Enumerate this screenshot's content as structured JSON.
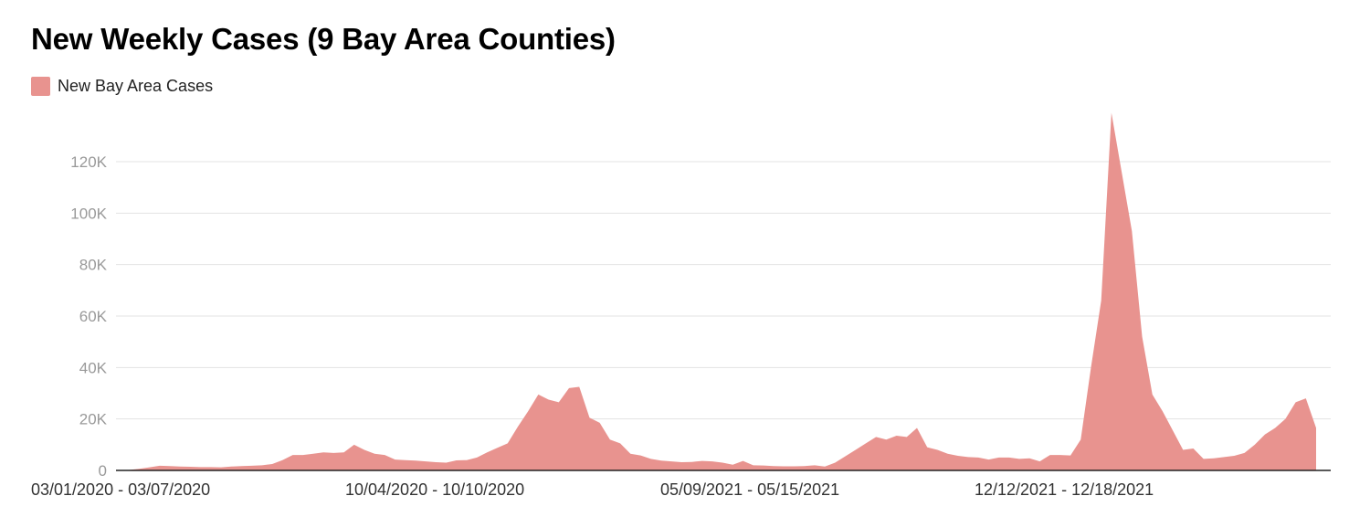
{
  "chart_data": {
    "type": "area",
    "title": "New Weekly Cases (9 Bay Area Counties)",
    "xlabel": "",
    "ylabel": "",
    "ylim": [
      0,
      140000
    ],
    "y_ticks": [
      0,
      20000,
      40000,
      60000,
      80000,
      100000,
      120000
    ],
    "y_tick_labels": [
      "0",
      "20K",
      "40K",
      "60K",
      "80K",
      "100K",
      "120K"
    ],
    "x_tick_labels": [
      "03/01/2020 - 03/07/2020",
      "10/04/2020 - 10/10/2020",
      "05/09/2021 - 05/15/2021",
      "12/12/2021 - 12/18/2021"
    ],
    "x_tick_indices": [
      0,
      31,
      62,
      93
    ],
    "grid": true,
    "legend": "top-left",
    "colors": {
      "series": "#e8938f"
    },
    "series": [
      {
        "name": "New Bay Area Cases",
        "values": [
          0,
          200,
          600,
          1200,
          1800,
          1700,
          1500,
          1400,
          1300,
          1300,
          1200,
          1500,
          1700,
          1800,
          2000,
          2500,
          4000,
          6000,
          6000,
          6500,
          7000,
          6800,
          7000,
          10000,
          8000,
          6500,
          6000,
          4200,
          4000,
          3800,
          3500,
          3200,
          3000,
          3900,
          4000,
          5000,
          7000,
          8800,
          10500,
          17000,
          23000,
          29500,
          27500,
          26500,
          32000,
          32500,
          20500,
          18500,
          12000,
          10500,
          6500,
          5800,
          4500,
          3800,
          3500,
          3200,
          3300,
          3700,
          3500,
          3000,
          2200,
          3700,
          2000,
          1900,
          1700,
          1600,
          1600,
          1700,
          2000,
          1500,
          3000,
          5500,
          8000,
          10500,
          13000,
          12000,
          13500,
          13000,
          16500,
          9000,
          8000,
          6500,
          5700,
          5200,
          5000,
          4200,
          5000,
          5000,
          4500,
          4700,
          3500,
          6000,
          6000,
          5800,
          12000,
          40000,
          66000,
          139000,
          116000,
          93000,
          52000,
          29500,
          23000,
          15500,
          8000,
          8500,
          4500,
          4700,
          5200,
          5700,
          6800,
          10000,
          14000,
          16500,
          20000,
          26500,
          28000,
          16500
        ]
      }
    ]
  }
}
